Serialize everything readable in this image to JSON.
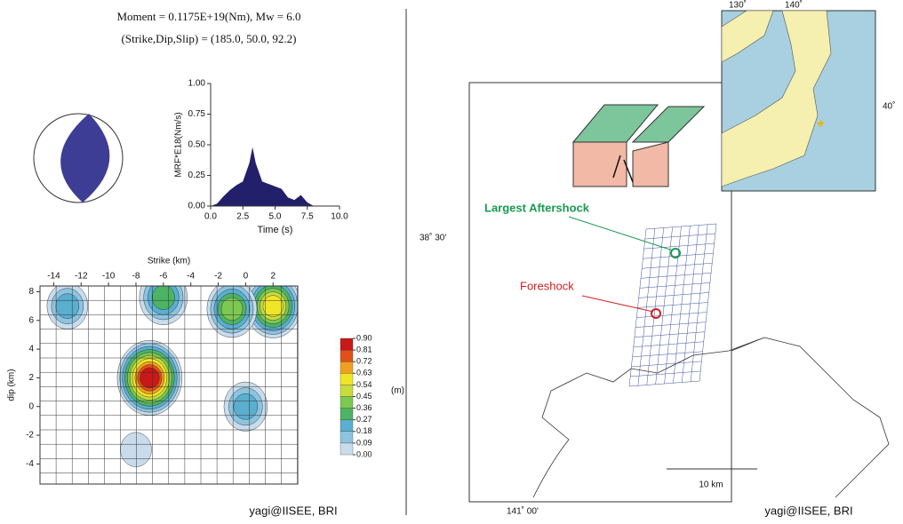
{
  "header": {
    "line1": "Moment = 0.1175E+19(Nm), Mw = 6.0",
    "line2": "(Strike,Dip,Slip) = (185.0, 50.0,    92.2)"
  },
  "chart_data": [
    {
      "type": "area",
      "x_label": "Time (s)",
      "y_label": "MRF*E18(Nm/s)",
      "color": "#22206b",
      "x": [
        0,
        0.5,
        1,
        1.5,
        2,
        2.5,
        3,
        3.25,
        3.5,
        4,
        4.5,
        5,
        5.5,
        6,
        6.5,
        7,
        7.5,
        8
      ],
      "values": [
        0,
        0.02,
        0.08,
        0.13,
        0.17,
        0.2,
        0.35,
        0.48,
        0.35,
        0.2,
        0.18,
        0.16,
        0.14,
        0.07,
        0.05,
        0.09,
        0.03,
        0
      ],
      "xlim": [
        0,
        10
      ],
      "ylim": [
        0,
        1
      ],
      "xticks": [
        {
          "value": 0,
          "label": "0.0"
        },
        {
          "value": 2.5,
          "label": "2.5"
        },
        {
          "value": 5,
          "label": "5.0"
        },
        {
          "value": 7.5,
          "label": "7.5"
        },
        {
          "value": 10,
          "label": "10.0"
        }
      ],
      "yticks": [
        {
          "value": 0,
          "label": "0.00"
        },
        {
          "value": 0.25,
          "label": "0.25"
        },
        {
          "value": 0.5,
          "label": "0.50"
        },
        {
          "value": 0.75,
          "label": "0.75"
        },
        {
          "value": 1,
          "label": "1.00"
        }
      ]
    },
    {
      "type": "slip-map",
      "x_label": "Strike (km)",
      "y_label": "dip (km)",
      "xlim": [
        -15,
        3.8
      ],
      "ylim": [
        -5.4,
        8.4
      ],
      "xticks": [
        -14,
        -12,
        -10,
        -8,
        -6,
        -4,
        -2,
        0,
        2
      ],
      "yticks": [
        -4,
        -2,
        0,
        2,
        4,
        6,
        8
      ],
      "patches": [
        {
          "strike": -7,
          "dip": 2,
          "slip": 0.9
        },
        {
          "strike": 2,
          "dip": 7,
          "slip": 0.6
        },
        {
          "strike": -1,
          "dip": 6.8,
          "slip": 0.45
        },
        {
          "strike": -6,
          "dip": 7.6,
          "slip": 0.4
        },
        {
          "strike": 0,
          "dip": 0,
          "slip": 0.3
        },
        {
          "strike": -13,
          "dip": 7,
          "slip": 0.25
        },
        {
          "strike": -8,
          "dip": -3,
          "slip": 0.1
        }
      ],
      "colorbar": {
        "unit": "(m)",
        "lim": [
          0,
          0.9
        ],
        "ticks": [
          {
            "value": 0.9,
            "label": "0.90"
          },
          0.81,
          0.72,
          0.63,
          0.54,
          0.45,
          0.36,
          0.27,
          0.18,
          0.09,
          {
            "value": 0,
            "label": "0.00"
          }
        ]
      }
    }
  ],
  "map": {
    "lon_labels": [
      "130˚",
      "140˚"
    ],
    "lat_label": "40˚",
    "main_lat": "38˚ 30'",
    "main_lon": "141˚ 00'",
    "scale": "10 km",
    "aftershock": "Largest Aftershock",
    "foreshock": "Foreshock"
  },
  "credits": [
    "yagi@IISEE, BRI",
    "yagi@IISEE, BRI"
  ]
}
